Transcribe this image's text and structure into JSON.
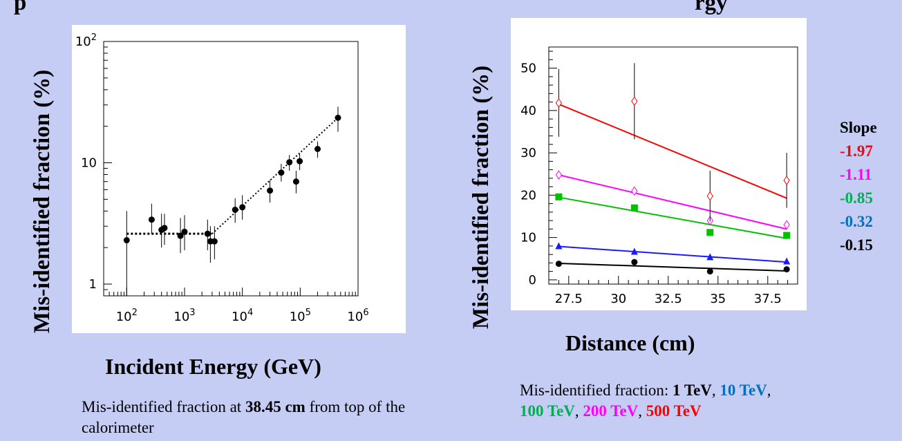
{
  "colors": {
    "background": "#c5cdf5",
    "e1": "#000000",
    "e10": "#0070c0",
    "e100": "#00b050",
    "e200": "#ff00ff",
    "e500": "#ff0000",
    "line_e10": "#1a1aff",
    "line_e100": "#00c000"
  },
  "top_fragments": {
    "left": "p",
    "right": "rgy"
  },
  "left_panel": {
    "ylabel": "Mis-identified fraction (%)",
    "xlabel": "Incident Energy (GeV)",
    "caption_pre": "Mis-identified fraction at ",
    "caption_bold": "38.45 cm",
    "caption_post": " from top of  the calorimeter"
  },
  "right_panel": {
    "ylabel": "Mis-identified fraction (%)",
    "xlabel": "Distance (cm)",
    "caption_pre": "Mis-identified fraction: ",
    "legend": [
      {
        "label": "1 TeV",
        "color": "#000000"
      },
      {
        "label": "10 TeV",
        "color": "#0070c0"
      },
      {
        "label": "100 TeV",
        "color": "#00b050"
      },
      {
        "label": "200 TeV",
        "color": "#ff00ff"
      },
      {
        "label": "500 TeV",
        "color": "#ff0000"
      }
    ],
    "slope_title": "Slope",
    "slopes": [
      {
        "value": "-1.97",
        "color": "#ff0000"
      },
      {
        "value": "-1.11",
        "color": "#ff00ff"
      },
      {
        "value": "-0.85",
        "color": "#00b050"
      },
      {
        "value": "-0.32",
        "color": "#0070c0"
      },
      {
        "value": "-0.15",
        "color": "#000000"
      }
    ]
  },
  "chart_data": [
    {
      "type": "scatter",
      "xscale": "log",
      "yscale": "log",
      "xlim": [
        40,
        1000000
      ],
      "ylim": [
        0.8,
        100
      ],
      "xticklabels": [
        "10^2",
        "10^3",
        "10^4",
        "10^5",
        "10^6"
      ],
      "yticklabels": [
        "1",
        "10",
        "10^2"
      ],
      "xlabel": "Incident Energy (GeV)",
      "ylabel": "Mis-identified fraction (%)",
      "grid": false,
      "points": [
        {
          "x": 100,
          "y": 2.3,
          "lo": 0.8,
          "hi": 4.0
        },
        {
          "x": 270,
          "y": 3.4,
          "lo": 2.6,
          "hi": 4.6
        },
        {
          "x": 400,
          "y": 2.8,
          "lo": 2.0,
          "hi": 3.8
        },
        {
          "x": 450,
          "y": 2.9,
          "lo": 2.1,
          "hi": 3.8
        },
        {
          "x": 850,
          "y": 2.5,
          "lo": 1.8,
          "hi": 3.5
        },
        {
          "x": 1000,
          "y": 2.7,
          "lo": 1.9,
          "hi": 3.7
        },
        {
          "x": 2500,
          "y": 2.6,
          "lo": 1.9,
          "hi": 3.4
        },
        {
          "x": 2800,
          "y": 2.25,
          "lo": 1.5,
          "hi": 3.0
        },
        {
          "x": 3300,
          "y": 2.25,
          "lo": 1.6,
          "hi": 3.0
        },
        {
          "x": 7500,
          "y": 4.1,
          "lo": 3.2,
          "hi": 5.1
        },
        {
          "x": 10000,
          "y": 4.3,
          "lo": 3.4,
          "hi": 5.4
        },
        {
          "x": 30000,
          "y": 5.9,
          "lo": 4.7,
          "hi": 7.2
        },
        {
          "x": 47000,
          "y": 8.3,
          "lo": 7.0,
          "hi": 9.8
        },
        {
          "x": 65000,
          "y": 10.1,
          "lo": 8.6,
          "hi": 11.6
        },
        {
          "x": 85000,
          "y": 7.0,
          "lo": 5.6,
          "hi": 8.6
        },
        {
          "x": 98000,
          "y": 10.3,
          "lo": 8.7,
          "hi": 11.9
        },
        {
          "x": 200000,
          "y": 13.0,
          "lo": 11.0,
          "hi": 15.0
        },
        {
          "x": 450000,
          "y": 23.5,
          "lo": 18.0,
          "hi": 29.0
        }
      ],
      "fits": [
        {
          "x": [
            100,
            3000
          ],
          "y": [
            2.6,
            2.6
          ],
          "style": "dotted"
        },
        {
          "x": [
            3000,
            450000
          ],
          "y": [
            2.6,
            23.5
          ],
          "style": "dotted"
        }
      ]
    },
    {
      "type": "scatter",
      "xlim": [
        26.5,
        39.0
      ],
      "ylim": [
        -1,
        55
      ],
      "xticklabels": [
        "27.5",
        "30",
        "32.5",
        "35",
        "37.5"
      ],
      "yticklabels": [
        "0",
        "10",
        "20",
        "30",
        "40",
        "50"
      ],
      "xlabel": "Distance (cm)",
      "ylabel": "Mis-identified fraction (%)",
      "grid": false,
      "series": [
        {
          "name": "1 TeV",
          "color": "#000000",
          "marker": "circle",
          "x": [
            27.0,
            30.8,
            34.6,
            38.45
          ],
          "y": [
            3.8,
            4.2,
            2.0,
            2.5
          ],
          "fit": [
            3.9,
            2.1
          ]
        },
        {
          "name": "10 TeV",
          "color": "#1a1aff",
          "marker": "triangle",
          "x": [
            27.0,
            30.8,
            34.6,
            38.45
          ],
          "y": [
            7.9,
            6.6,
            5.3,
            4.3
          ],
          "fit": [
            7.9,
            4.2
          ]
        },
        {
          "name": "100 TeV",
          "color": "#00c000",
          "marker": "square",
          "x": [
            27.0,
            30.8,
            34.6,
            38.45
          ],
          "y": [
            19.6,
            17.0,
            11.2,
            10.5
          ],
          "fit": [
            19.5,
            9.8
          ]
        },
        {
          "name": "200 TeV",
          "color": "#ff00ff",
          "marker": "open-diamond",
          "x": [
            27.0,
            30.8,
            34.6,
            38.45
          ],
          "y": [
            24.8,
            21.0,
            14.0,
            13.0
          ],
          "fit": [
            24.8,
            12.0
          ]
        },
        {
          "name": "500 TeV",
          "color": "#ff0000",
          "marker": "open-diamond",
          "x": [
            27.0,
            30.8,
            34.6,
            38.45
          ],
          "y": [
            41.8,
            42.2,
            19.8,
            23.5
          ],
          "err": [
            8.0,
            9.0,
            6.0,
            6.5
          ],
          "fit": [
            41.5,
            19.3
          ]
        }
      ]
    }
  ]
}
